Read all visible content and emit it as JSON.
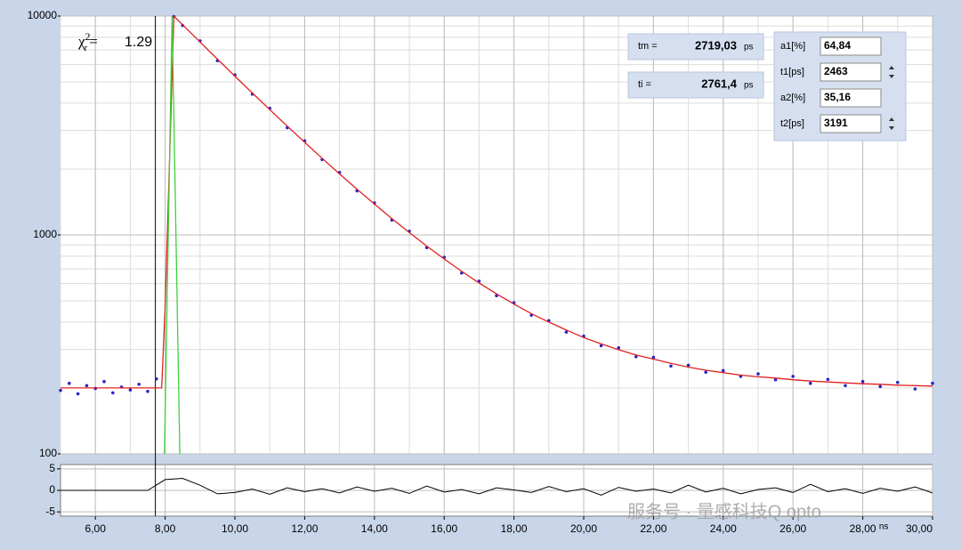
{
  "chart_data": [
    {
      "type": "decay",
      "annotation": {
        "symbol": "χ",
        "sub": "r",
        "sup": "2",
        "eq": "=",
        "value": 1.29
      },
      "xlim": [
        5,
        30
      ],
      "ylim": [
        100,
        10000
      ],
      "log_y": true,
      "yticks": [
        100,
        1000,
        10000
      ],
      "grid": true,
      "minor_grid": true,
      "cursor_x": 7.72,
      "cursor_color": "#000000",
      "series": [
        {
          "mode": "markers",
          "color": "#2626c8",
          "x": [
            5,
            5.25,
            5.5,
            5.75,
            6,
            6.25,
            6.5,
            6.75,
            7,
            7.25,
            7.5,
            7.75,
            8.25,
            8.5,
            9,
            9.5,
            10,
            10.5,
            11,
            11.5,
            12,
            12.5,
            13,
            13.5,
            14,
            14.5,
            15,
            15.5,
            16,
            16.5,
            17,
            17.5,
            18,
            18.5,
            19,
            19.5,
            20,
            20.5,
            21,
            21.5,
            22,
            22.5,
            23,
            23.5,
            24,
            24.5,
            25,
            25.5,
            26,
            26.5,
            27,
            27.5,
            28,
            28.5,
            29,
            29.5,
            30
          ],
          "values": [
            195,
            210,
            188,
            205,
            199,
            214,
            190,
            202,
            196,
            208,
            193,
            220,
            9950,
            9050,
            7700,
            6250,
            5380,
            4400,
            3790,
            3090,
            2690,
            2210,
            1930,
            1590,
            1400,
            1170,
            1040,
            875,
            790,
            670,
            615,
            528,
            490,
            430,
            406,
            360,
            345,
            312,
            305,
            278,
            276,
            252,
            254,
            236,
            240,
            226,
            232,
            218,
            226,
            210,
            219,
            205,
            214,
            203,
            212,
            198,
            210
          ]
        },
        {
          "mode": "line",
          "color": "#e02020",
          "x": [
            5,
            7.9,
            8.0,
            8.25,
            8.5,
            9,
            9.5,
            10,
            10.5,
            11,
            11.5,
            12,
            12.5,
            13,
            13.5,
            14,
            14.5,
            15,
            15.5,
            16,
            16.5,
            17,
            17.5,
            18,
            18.5,
            19,
            19.5,
            20,
            20.5,
            21,
            21.5,
            22,
            22.5,
            23,
            23.5,
            24,
            24.5,
            25,
            25.5,
            26,
            26.5,
            27,
            27.5,
            28,
            28.5,
            29,
            29.5,
            30
          ],
          "values": [
            200,
            200,
            470,
            10000,
            9127,
            7610,
            6353,
            5313,
            4450,
            3735,
            3142,
            2649,
            2241,
            1901,
            1618,
            1384,
            1188,
            1026,
            890,
            777,
            682,
            604,
            538,
            483,
            437,
            400,
            368,
            340,
            318,
            299,
            283,
            271,
            259,
            249,
            241,
            235,
            229,
            225,
            222,
            218,
            215,
            213,
            211,
            209,
            208,
            206,
            205,
            204
          ]
        },
        {
          "mode": "line",
          "color": "#3cd23c",
          "x": [
            7.98,
            8.2,
            8.42
          ],
          "values": [
            100,
            10000,
            100
          ]
        }
      ]
    },
    {
      "type": "residuals",
      "xlim": [
        5,
        30
      ],
      "ylim": [
        -6,
        6
      ],
      "yticks": [
        5,
        0,
        -5
      ],
      "grid": true,
      "x_label": "ns",
      "xticks": [
        {
          "value": 6,
          "label": "6,00"
        },
        {
          "value": 8,
          "label": "8,00"
        },
        {
          "value": 10,
          "label": "10,00"
        },
        {
          "value": 12,
          "label": "12,00"
        },
        {
          "value": 14,
          "label": "14,00"
        },
        {
          "value": 16,
          "label": "16,00"
        },
        {
          "value": 18,
          "label": "18,00"
        },
        {
          "value": 20,
          "label": "20,00"
        },
        {
          "value": 22,
          "label": "22,00"
        },
        {
          "value": 24,
          "label": "24,00"
        },
        {
          "value": 26,
          "label": "26,00"
        },
        {
          "value": 28,
          "label": "28,00"
        },
        {
          "value": 30,
          "label": "30,00"
        }
      ],
      "color": "#000000",
      "x": [
        5,
        7.5,
        8,
        8.5,
        9,
        9.5,
        10,
        10.5,
        11,
        11.5,
        12,
        12.5,
        13,
        13.5,
        14,
        14.5,
        15,
        15.5,
        16,
        16.5,
        17,
        17.5,
        18,
        18.5,
        19,
        19.5,
        20,
        20.5,
        21,
        21.5,
        22,
        22.5,
        23,
        23.5,
        24,
        24.5,
        25,
        25.5,
        26,
        26.5,
        27,
        27.5,
        28,
        28.5,
        29,
        29.5,
        30
      ],
      "values": [
        0,
        0,
        2.5,
        2.8,
        1.2,
        -0.8,
        -0.5,
        0.3,
        -0.9,
        0.6,
        -0.3,
        0.4,
        -0.6,
        0.8,
        -0.2,
        0.5,
        -0.7,
        1.0,
        -0.4,
        0.2,
        -0.8,
        0.6,
        0.1,
        -0.5,
        0.9,
        -0.3,
        0.4,
        -1.1,
        0.7,
        -0.2,
        0.3,
        -0.6,
        1.2,
        -0.4,
        0.5,
        -0.8,
        0.2,
        0.6,
        -0.5,
        1.4,
        -0.3,
        0.4,
        -0.7,
        0.5,
        -0.2,
        0.8,
        -0.6
      ]
    }
  ],
  "panel": {
    "tm": {
      "label": "tm =",
      "value": "2719,03",
      "unit": "ps"
    },
    "ti": {
      "label": "ti =",
      "value": "2761,4",
      "unit": "ps"
    },
    "fields": [
      {
        "label": "a1[%]",
        "value": "64,84"
      },
      {
        "label": "t1[ps]",
        "value": "2463"
      },
      {
        "label": "a2[%]",
        "value": "35,16"
      },
      {
        "label": "t2[ps]",
        "value": "3191"
      }
    ]
  },
  "watermark": "服务号 · 量感科技Q opto"
}
